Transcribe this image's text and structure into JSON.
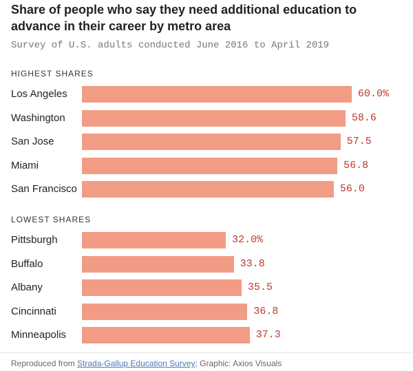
{
  "chart_data": {
    "type": "bar",
    "title": "Share of people who say they need additional education to advance in their career by metro area",
    "subtitle": "Survey of U.S. adults conducted June 2016 to April 2019",
    "xlim": [
      0,
      60
    ],
    "sections": [
      {
        "label": "HIGHEST SHARES",
        "categories": [
          "Los Angeles",
          "Washington",
          "San Jose",
          "Miami",
          "San Francisco"
        ],
        "values": [
          60.0,
          58.6,
          57.5,
          56.8,
          56.0
        ],
        "value_labels": [
          "60.0%",
          "58.6",
          "57.5",
          "56.8",
          "56.0"
        ]
      },
      {
        "label": "LOWEST SHARES",
        "categories": [
          "Pittsburgh",
          "Buffalo",
          "Albany",
          "Cincinnati",
          "Minneapolis"
        ],
        "values": [
          32.0,
          33.8,
          35.5,
          36.8,
          37.3
        ],
        "value_labels": [
          "32.0%",
          "33.8",
          "35.5",
          "36.8",
          "37.3"
        ]
      }
    ],
    "bar_color": "#f29c85",
    "value_color": "#c0392b"
  },
  "footer": {
    "prefix": "Reproduced from ",
    "source_link": "Strada-Gallup Education Survey",
    "suffix": "; Graphic: Axios Visuals"
  }
}
